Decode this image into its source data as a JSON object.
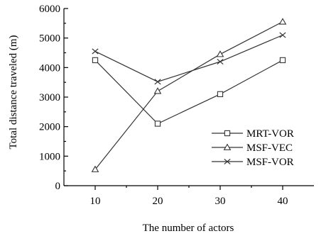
{
  "chart_data": {
    "type": "line",
    "xlabel": "The number of actors",
    "ylabel": "Total distance traveled (m)",
    "x": [
      10,
      20,
      30,
      40
    ],
    "xlim": [
      5,
      45
    ],
    "ylim": [
      0,
      6000
    ],
    "xticks": [
      10,
      20,
      30,
      40
    ],
    "yticks": [
      0,
      1000,
      2000,
      3000,
      4000,
      5000,
      6000
    ],
    "grid": false,
    "legend_position": "bottom-right",
    "series": [
      {
        "name": "MRT-VOR",
        "marker": "square",
        "values": [
          4250,
          2100,
          3100,
          4250
        ]
      },
      {
        "name": "MSF-VEC",
        "marker": "triangle",
        "values": [
          550,
          3200,
          4450,
          5550
        ]
      },
      {
        "name": "MSF-VOR",
        "marker": "x",
        "values": [
          4550,
          3520,
          4200,
          5100
        ]
      }
    ]
  }
}
